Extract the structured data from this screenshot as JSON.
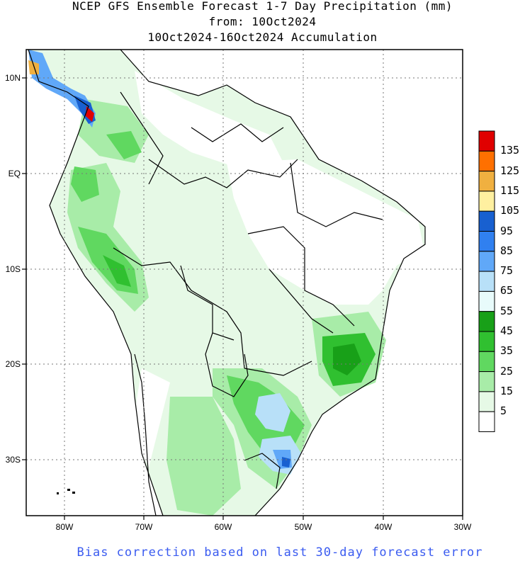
{
  "title": {
    "line1": "NCEP GFS Ensemble Forecast 1-7 Day Precipitation (mm)",
    "line2": "from: 10Oct2024",
    "line3": "10Oct2024-16Oct2024 Accumulation"
  },
  "axes": {
    "lat_labels": [
      "10N",
      "EQ",
      "10S",
      "20S",
      "30S"
    ],
    "lon_labels": [
      "80W",
      "70W",
      "60W",
      "50W",
      "40W",
      "30W"
    ]
  },
  "legend": {
    "labels": [
      "135",
      "125",
      "115",
      "105",
      "95",
      "85",
      "75",
      "65",
      "55",
      "45",
      "35",
      "25",
      "15",
      "5"
    ],
    "colors": [
      "#e00000",
      "#ff7000",
      "#f0b040",
      "#fff0a0",
      "#1860d0",
      "#3080f0",
      "#60a8f8",
      "#b8e0f8",
      "#e8fbfb",
      "#18a018",
      "#30c030",
      "#60d860",
      "#a8eca8",
      "#e6f9e6",
      "#ffffff"
    ]
  },
  "footer": "Bias correction based on last 30-day forecast error"
}
